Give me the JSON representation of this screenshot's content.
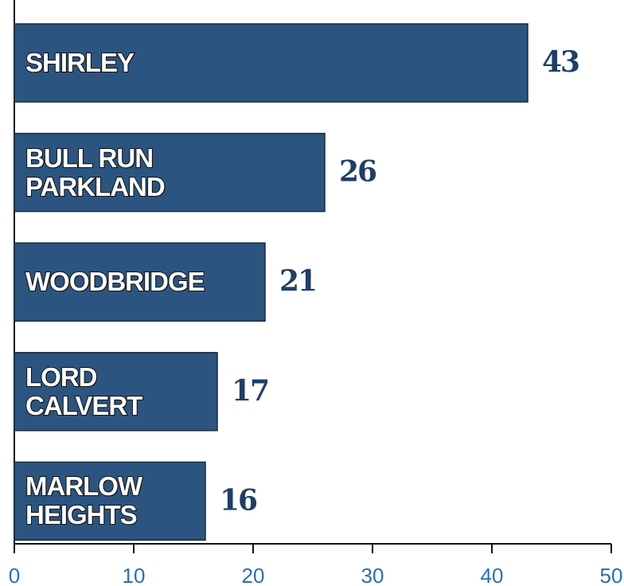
{
  "chart_data": {
    "type": "hbar",
    "categories": [
      "SHIRLEY",
      "BULL RUN\nPARKLAND",
      "WOODBRIDGE",
      "LORD\nCALVERT",
      "MARLOW\nHEIGHTS"
    ],
    "values": [
      43,
      26,
      21,
      17,
      16
    ],
    "color": "#2b5580",
    "xlim": [
      0,
      50
    ],
    "xticks": [
      0,
      10,
      20,
      30,
      40,
      50
    ]
  }
}
